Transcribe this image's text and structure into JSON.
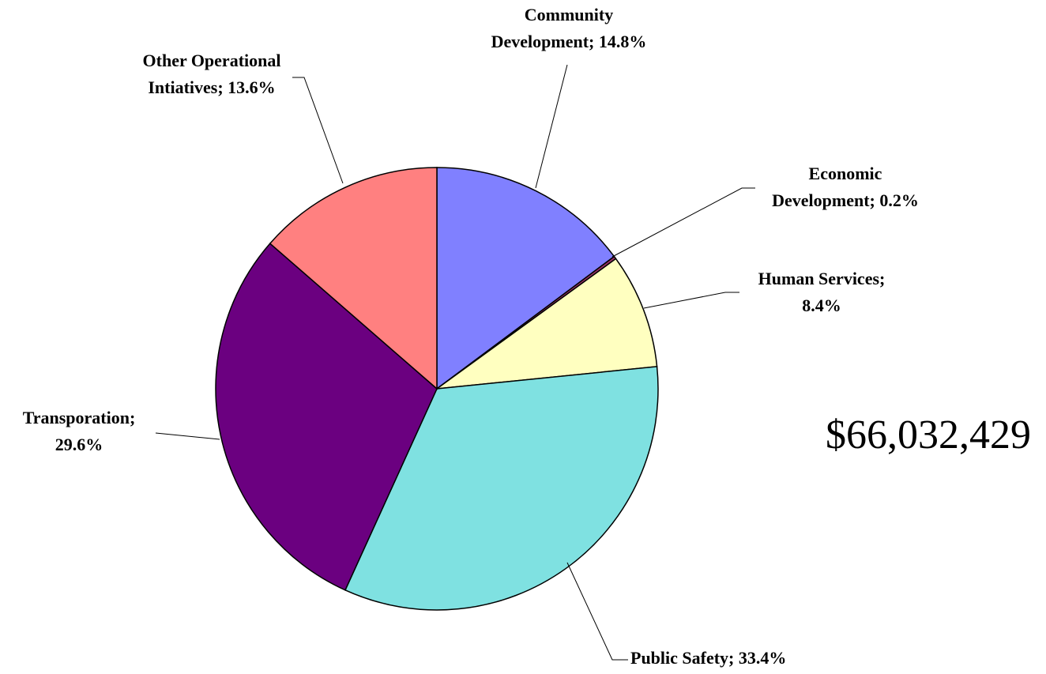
{
  "chart_data": {
    "type": "pie",
    "values": [
      14.8,
      0.2,
      8.4,
      33.4,
      29.6,
      13.6
    ],
    "value_labels": [
      "Community Development; 14.8%",
      "Economic Development; 0.2%",
      "Human Services; 8.4%",
      "Public Safety; 33.4%",
      "Transporation; 29.6%",
      "Other Operational Intiatives; 13.6%"
    ],
    "colors": [
      "#8080ff",
      "#993366",
      "#ffffc0",
      "#7fe1e1",
      "#6b0080",
      "#ff8080"
    ],
    "annotation": "$66,032,429"
  }
}
